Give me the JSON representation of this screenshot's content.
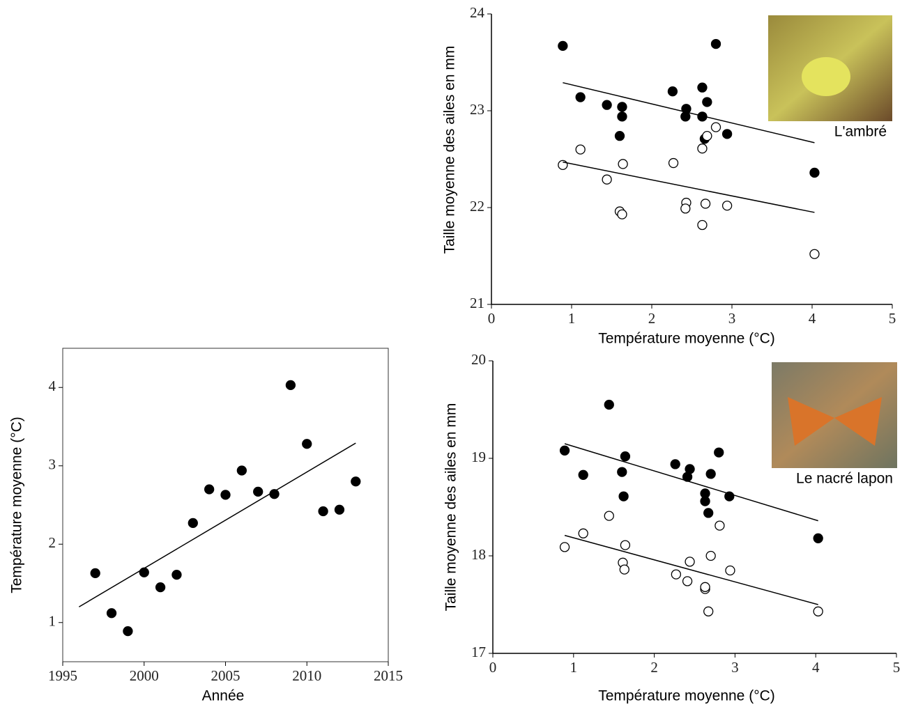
{
  "chart_data": [
    {
      "type": "scatter",
      "xlabel": "Année",
      "ylabel": "Température moyenne  (°C)",
      "box": true,
      "xlim": [
        1995,
        2015
      ],
      "ylim": [
        0.5,
        4.5
      ],
      "xticks": [
        1995,
        2000,
        2005,
        2010,
        2015
      ],
      "yticks": [
        1,
        2,
        3,
        4
      ],
      "series": [
        {
          "color": "#000000",
          "marker": "filled",
          "x": [
            1997,
            1998,
            1999,
            2000,
            2001,
            2002,
            2003,
            2004,
            2005,
            2006,
            2007,
            2008,
            2009,
            2010,
            2011,
            2012,
            2013
          ],
          "values": [
            1.63,
            1.12,
            0.89,
            1.64,
            1.45,
            1.61,
            2.27,
            2.7,
            2.63,
            2.94,
            2.67,
            2.64,
            4.03,
            3.28,
            2.42,
            2.44,
            2.8
          ]
        },
        {
          "color": "#000000",
          "mode": "line",
          "x": [
            1996,
            2013
          ],
          "values": [
            1.2,
            3.29
          ]
        }
      ]
    },
    {
      "type": "scatter",
      "xlabel": "Température moyenne (°C)",
      "ylabel": "Taille moyenne des ailes en mm",
      "box": false,
      "annotation": "L'ambré",
      "xlim": [
        0,
        5
      ],
      "ylim": [
        21,
        24
      ],
      "xticks": [
        0,
        1,
        2,
        3,
        4,
        5
      ],
      "yticks": [
        21,
        22,
        23,
        24
      ],
      "series": [
        {
          "color": "#000000",
          "marker": "filled",
          "x": [
            0.89,
            1.11,
            1.44,
            1.63,
            1.63,
            1.6,
            2.26,
            2.43,
            2.42,
            2.63,
            2.63,
            2.69,
            2.66,
            2.8,
            2.94,
            4.03
          ],
          "values": [
            23.67,
            23.14,
            23.06,
            23.04,
            22.94,
            22.74,
            23.2,
            23.02,
            22.94,
            23.24,
            22.94,
            23.09,
            22.71,
            23.69,
            22.76,
            22.36
          ]
        },
        {
          "color": "#000000",
          "marker": "open",
          "x": [
            0.89,
            1.11,
            1.44,
            1.64,
            1.6,
            1.63,
            2.27,
            2.43,
            2.42,
            2.63,
            2.63,
            2.67,
            2.69,
            2.8,
            2.94,
            4.03
          ],
          "values": [
            22.44,
            22.6,
            22.29,
            22.45,
            21.96,
            21.93,
            22.46,
            22.05,
            21.99,
            22.61,
            21.82,
            22.04,
            22.74,
            22.83,
            22.02,
            21.52
          ]
        },
        {
          "color": "#000000",
          "mode": "line",
          "x": [
            0.89,
            4.03
          ],
          "values": [
            23.29,
            22.67
          ]
        },
        {
          "color": "#000000",
          "mode": "line",
          "x": [
            0.89,
            4.03
          ],
          "values": [
            22.47,
            21.95
          ]
        }
      ]
    },
    {
      "type": "scatter",
      "xlabel": "Température moyenne (°C)",
      "ylabel": "Taille moyenne des ailes en mm",
      "box": false,
      "annotation": "Le nacré lapon",
      "xlim": [
        0,
        5
      ],
      "ylim": [
        17,
        20
      ],
      "xticks": [
        0,
        1,
        2,
        3,
        4,
        5
      ],
      "yticks": [
        17,
        18,
        19,
        20
      ],
      "series": [
        {
          "color": "#000000",
          "marker": "filled",
          "x": [
            0.89,
            1.12,
            1.44,
            1.6,
            1.64,
            1.62,
            2.26,
            2.44,
            2.41,
            2.63,
            2.63,
            2.67,
            2.7,
            2.8,
            2.93,
            4.03
          ],
          "values": [
            19.08,
            18.83,
            19.55,
            18.86,
            19.02,
            18.61,
            18.94,
            18.89,
            18.81,
            18.64,
            18.56,
            18.44,
            18.84,
            19.06,
            18.61,
            18.18
          ]
        },
        {
          "color": "#000000",
          "marker": "open",
          "x": [
            0.89,
            1.12,
            1.44,
            1.64,
            1.61,
            1.63,
            2.27,
            2.41,
            2.44,
            2.63,
            2.63,
            2.67,
            2.7,
            2.81,
            2.94,
            4.03
          ],
          "values": [
            18.09,
            18.23,
            18.41,
            18.11,
            17.93,
            17.86,
            17.81,
            17.74,
            17.94,
            17.66,
            17.68,
            17.43,
            18.0,
            18.31,
            17.85,
            17.43
          ]
        },
        {
          "color": "#000000",
          "mode": "line",
          "x": [
            0.89,
            4.03
          ],
          "values": [
            19.15,
            18.36
          ]
        },
        {
          "color": "#000000",
          "mode": "line",
          "x": [
            0.89,
            4.03
          ],
          "values": [
            18.21,
            17.5
          ]
        }
      ]
    }
  ]
}
